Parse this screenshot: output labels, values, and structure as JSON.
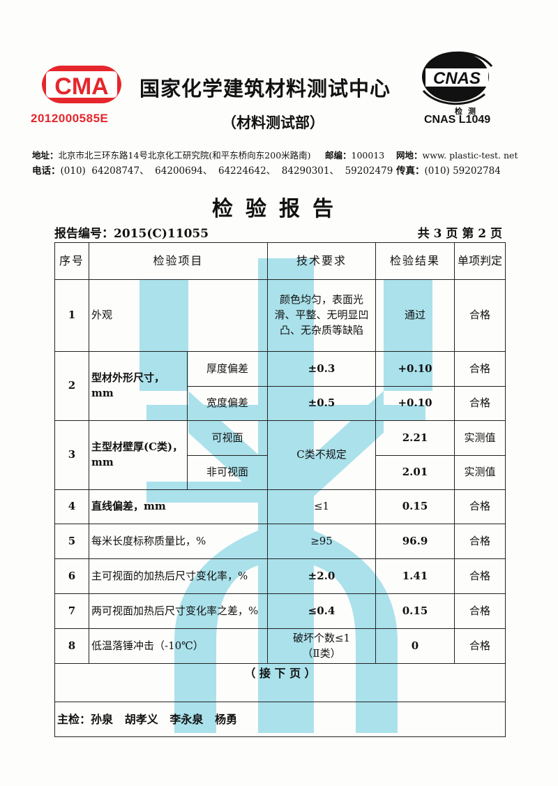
{
  "header": {
    "cma_logo_text": "CMA",
    "cma_number": "2012000585E",
    "org_name": "国家化学建筑材料测试中心",
    "dept": "（材料测试部）",
    "cnas_logo_text": "CNAS",
    "cnas_small": "检测",
    "cnas_code": "CNAS  L1049",
    "address_label": "地址：",
    "address": "北京市北三环东路14号北京化工研究院(和平东桥向东200米路南)",
    "postcode_label": "邮编：",
    "postcode": "100013",
    "website_label": "网地：",
    "website": "www. plastic-test. net",
    "phone_label": "电话：",
    "phones": "(010)  64208747、  64200694、  64224642、  84290301、  59202479",
    "fax_label": "传真：",
    "fax": "(010) 59202784"
  },
  "report": {
    "title": "检验报告",
    "number": "报告编号：2015(C)11055",
    "pages": "共 3 页 第 2 页"
  },
  "table": {
    "headers": [
      "序号",
      "检验项目",
      "技术要求",
      "检验结果",
      "单项判定"
    ],
    "rows": [
      {
        "no": "1",
        "item": "外观",
        "req": "颜色均匀，表面光滑、平整、无明显凹凸、无杂质等缺陷",
        "result": "通过",
        "verdict": "合格"
      },
      {
        "no": "2",
        "item": "型材外形尺寸，mm",
        "subs": [
          {
            "sub": "厚度偏差",
            "req": "±0.3",
            "result": "+0.10",
            "verdict": "合格"
          },
          {
            "sub": "宽度偏差",
            "req": "±0.5",
            "result": "+0.10",
            "verdict": "合格"
          }
        ]
      },
      {
        "no": "3",
        "item": "主型材壁厚(C类)，mm",
        "req": "C类不规定",
        "subs": [
          {
            "sub": "可视面",
            "result": "2.21",
            "verdict": "实测值"
          },
          {
            "sub": "非可视面",
            "result": "2.01",
            "verdict": "实测值"
          }
        ]
      },
      {
        "no": "4",
        "item": "直线偏差，mm",
        "req": "≤1",
        "result": "0.15",
        "verdict": "合格"
      },
      {
        "no": "5",
        "item": "每米长度标称质量比，%",
        "req": "≥95",
        "result": "96.9",
        "verdict": "合格"
      },
      {
        "no": "6",
        "item": "主可视面的加热后尺寸变化率，%",
        "req": "±2.0",
        "result": "1.41",
        "verdict": "合格"
      },
      {
        "no": "7",
        "item": "两可视面加热后尺寸变化率之差，%",
        "req": "≤0.4",
        "result": "0.15",
        "verdict": "合格"
      },
      {
        "no": "8",
        "item": "低温落锤冲击（-10℃）",
        "req": "破坏个数≤1（Ⅱ类）",
        "result": "0",
        "verdict": "合格"
      }
    ],
    "continued": "（ 接 下 页 ）",
    "inspectors": "主检：孙泉   胡孝义   李永泉   杨勇"
  },
  "colors": {
    "cma_red": "#e5262c",
    "watermark": "#8fd8e6"
  }
}
